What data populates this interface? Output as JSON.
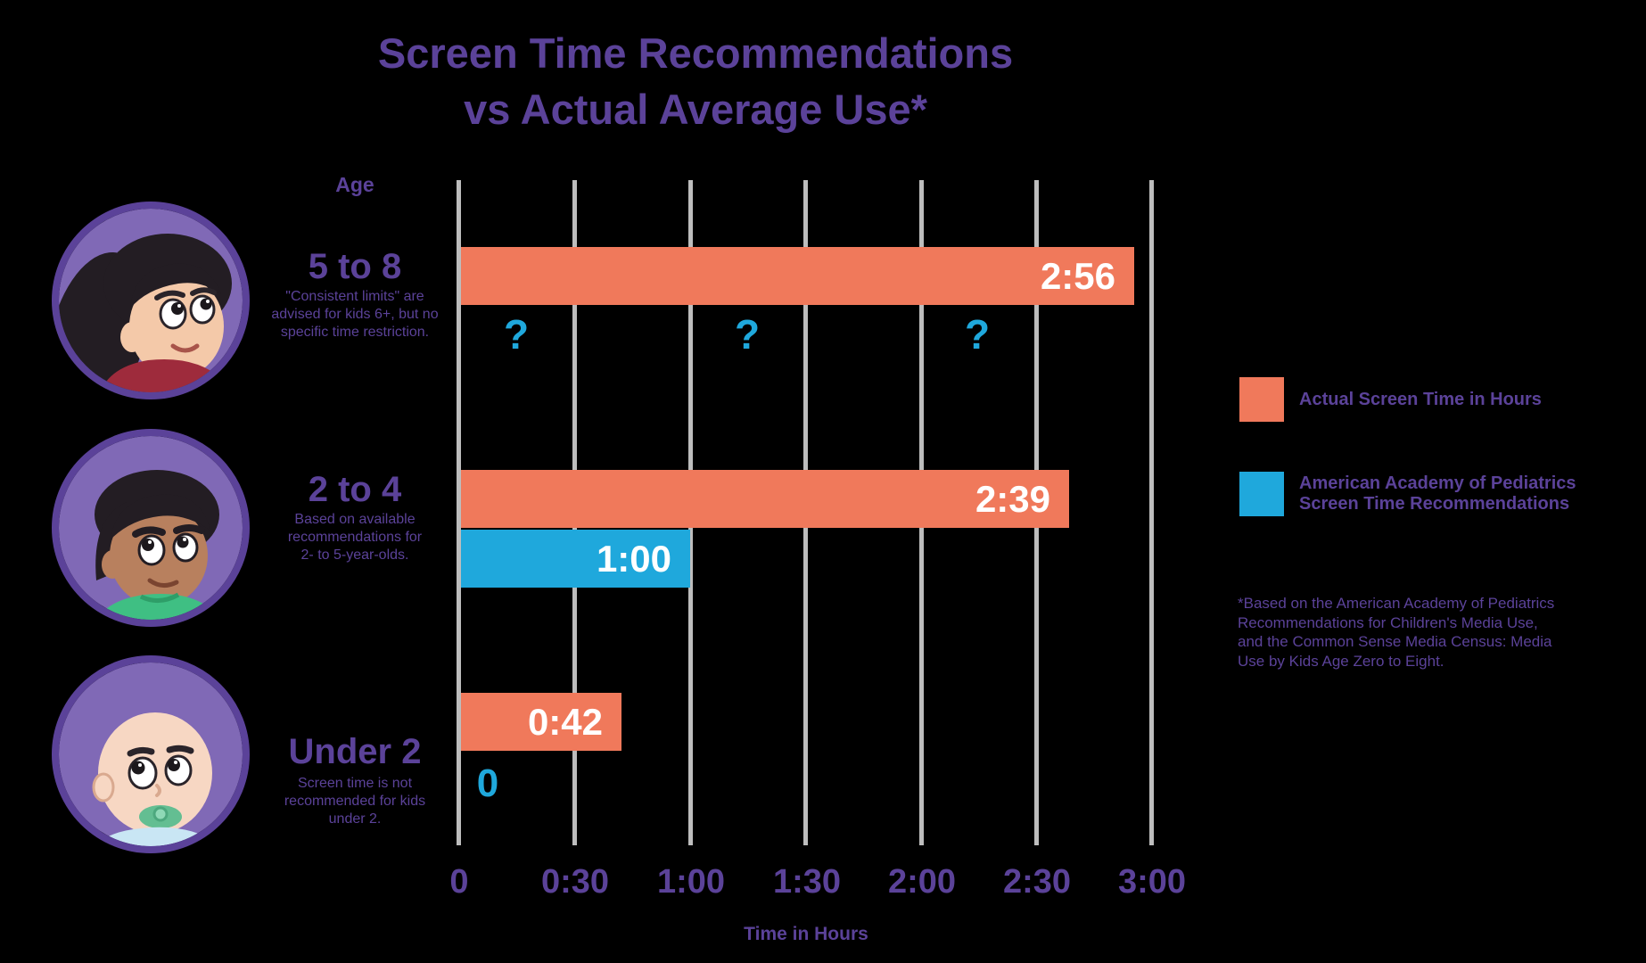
{
  "title": {
    "line1": "Screen Time Recommendations",
    "line2": "vs Actual Average Use*"
  },
  "axis": {
    "column_header": "Age",
    "x_label": "Time in Hours",
    "x_ticks": [
      "0",
      "0:30",
      "1:00",
      "1:30",
      "2:00",
      "2:30",
      "3:00"
    ]
  },
  "rows": [
    {
      "age": "5 to 8",
      "note_lines": [
        "\"Consistent limits\" are",
        "advised for kids 6+, but no",
        "specific time restriction."
      ],
      "actual": {
        "label": "2:56",
        "minutes": 176
      },
      "recommended": {
        "label": null,
        "minutes": null,
        "unknown_marks": [
          "?",
          "?",
          "?"
        ]
      },
      "avatar": "girl-with-ponytail"
    },
    {
      "age": "2 to 4",
      "note_lines": [
        "Based on available",
        "recommendations for",
        "2- to 5-year-olds."
      ],
      "actual": {
        "label": "2:39",
        "minutes": 159
      },
      "recommended": {
        "label": "1:00",
        "minutes": 60
      },
      "avatar": "young-boy"
    },
    {
      "age": "Under 2",
      "note_lines": [
        "Screen time is not",
        "recommended for kids",
        "under 2."
      ],
      "actual": {
        "label": "0:42",
        "minutes": 42
      },
      "recommended": {
        "label": "0",
        "minutes": 0
      },
      "avatar": "baby-with-pacifier"
    }
  ],
  "legend": [
    {
      "lines": [
        "Actual Screen Time in Hours"
      ],
      "color": "#F0795B"
    },
    {
      "lines": [
        "American Academy of Pediatrics",
        "Screen Time Recommendations"
      ],
      "color": "#1FA8DC"
    }
  ],
  "footnote_lines": [
    "*Based on the American Academy of Pediatrics",
    "Recommendations for Children's Media Use,",
    "and the Common Sense Media Census: Media",
    "Use by Kids Age Zero to Eight."
  ],
  "colors": {
    "background": "#000000",
    "purple": "#5B4299",
    "orange": "#F0795B",
    "blue": "#1FA8DC",
    "grid": "#BDBDBD",
    "bar_label": "#FFFFFF",
    "avatar_circle_fill": "#8069B6",
    "avatar_circle_border": "#5B4299"
  },
  "chart_data": {
    "type": "bar",
    "orientation": "horizontal",
    "title": "Screen Time Recommendations vs Actual Average Use*",
    "categories": [
      "5 to 8",
      "2 to 4",
      "Under 2"
    ],
    "series": [
      {
        "name": "Actual Screen Time in Hours",
        "color": "#F0795B",
        "values_minutes": [
          176,
          159,
          42
        ],
        "value_labels": [
          "2:56",
          "2:39",
          "0:42"
        ]
      },
      {
        "name": "American Academy of Pediatrics Screen Time Recommendations",
        "color": "#1FA8DC",
        "values_minutes": [
          null,
          60,
          0
        ],
        "value_labels": [
          "?",
          "1:00",
          "0"
        ]
      }
    ],
    "xlabel": "Time in Hours",
    "x_tick_labels": [
      "0",
      "0:30",
      "1:00",
      "1:30",
      "2:00",
      "2:30",
      "3:00"
    ],
    "x_range_minutes": [
      0,
      180
    ],
    "x_tick_interval_minutes": 30,
    "grid": true,
    "legend_position": "right",
    "category_notes": {
      "5 to 8": "\"Consistent limits\" are advised for kids 6+, but no specific time restriction.",
      "2 to 4": "Based on available recommendations for 2- to 5-year-olds.",
      "Under 2": "Screen time is not recommended for kids under 2."
    },
    "footnote": "*Based on the American Academy of Pediatrics Recommendations for Children's Media Use, and the Common Sense Media Census: Media Use by Kids Age Zero to Eight."
  }
}
